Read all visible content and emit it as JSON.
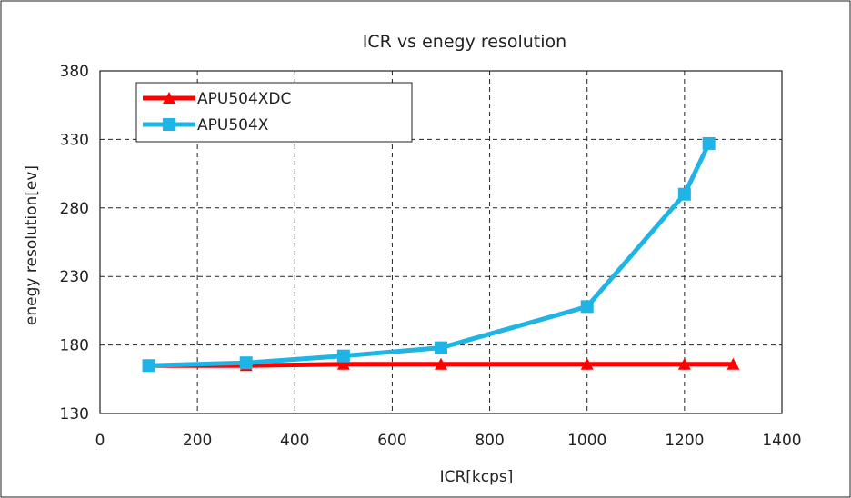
{
  "chart_data": {
    "type": "line",
    "title": "ICR vs enegy resolution",
    "xlabel": "ICR[kcps]",
    "ylabel": "enegy resolution[ev]",
    "xlim": [
      0,
      1400
    ],
    "ylim": [
      130,
      380
    ],
    "xticks": [
      0,
      200,
      400,
      600,
      800,
      1000,
      1200,
      1400
    ],
    "yticks": [
      130,
      180,
      230,
      280,
      330,
      380
    ],
    "grid": true,
    "legend_position": "top-left",
    "series": [
      {
        "name": "APU504XDC",
        "color": "#ff0000",
        "marker": "triangle",
        "x": [
          100,
          300,
          500,
          700,
          1000,
          1200,
          1300
        ],
        "y": [
          165,
          165,
          166,
          166,
          166,
          166,
          166
        ]
      },
      {
        "name": "APU504X",
        "color": "#1fb4e6",
        "marker": "square",
        "x": [
          100,
          300,
          500,
          700,
          1000,
          1200,
          1250
        ],
        "y": [
          165,
          167,
          172,
          178,
          208,
          290,
          327
        ]
      }
    ]
  }
}
